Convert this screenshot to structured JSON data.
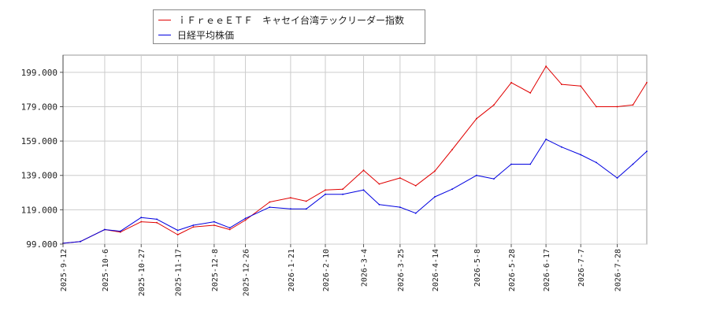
{
  "chart_data": {
    "type": "line",
    "legend": {
      "placement": "top-left"
    },
    "grid": true,
    "ylim": [
      99,
      209
    ],
    "yticks": [
      "99.000",
      "119.000",
      "139.000",
      "159.000",
      "179.000",
      "199.000"
    ],
    "ytick_values": [
      99,
      119,
      139,
      159,
      179,
      199
    ],
    "xticks": [
      "2025-9-12",
      "2025-10-6",
      "2025-10-27",
      "2025-11-17",
      "2025-12-8",
      "2025-12-26",
      "2026-1-21",
      "2026-2-10",
      "2026-3-4",
      "2026-3-25",
      "2026-4-14",
      "2026-5-8",
      "2026-5-28",
      "2026-6-17",
      "2026-7-7",
      "2026-7-28"
    ],
    "x": [
      "2025-9-12",
      "2025-9-22",
      "2025-10-6",
      "2025-10-15",
      "2025-10-27",
      "2025-11-5",
      "2025-11-17",
      "2025-11-26",
      "2025-12-8",
      "2025-12-17",
      "2025-12-26",
      "2026-1-9",
      "2026-1-21",
      "2026-1-30",
      "2026-2-10",
      "2026-2-20",
      "2026-3-4",
      "2026-3-13",
      "2026-3-25",
      "2026-4-3",
      "2026-4-14",
      "2026-4-24",
      "2026-5-8",
      "2026-5-18",
      "2026-5-28",
      "2026-6-8",
      "2026-6-17",
      "2026-6-26",
      "2026-7-7",
      "2026-7-16",
      "2026-7-28",
      "2026-8-6",
      "2026-8-14"
    ],
    "series": [
      {
        "name": "ｉＦｒｅｅＥＴＦ　キャセイ台湾テックリーダー指数",
        "color": "#e00000",
        "values": [
          99.5,
          100.5,
          107.5,
          106.0,
          112.0,
          111.5,
          104.5,
          109.0,
          110.0,
          107.5,
          113.0,
          123.5,
          126.0,
          124.0,
          130.5,
          131.0,
          142.0,
          134.0,
          137.5,
          133.0,
          141.5,
          154.0,
          172.0,
          180.0,
          193.0,
          187.0,
          202.5,
          192.0,
          191.0,
          179.0,
          179.0,
          180.0,
          193.0
        ]
      },
      {
        "name": "日経平均株価",
        "color": "#0000e0",
        "values": [
          99.5,
          100.5,
          107.5,
          106.5,
          114.5,
          113.5,
          107.0,
          110.0,
          112.0,
          108.5,
          114.0,
          120.5,
          119.5,
          119.5,
          128.0,
          128.0,
          130.5,
          122.0,
          120.5,
          117.0,
          126.5,
          131.0,
          139.0,
          137.0,
          145.5,
          145.5,
          160.0,
          155.5,
          151.0,
          146.5,
          137.5,
          145.5,
          153.0
        ]
      }
    ]
  }
}
